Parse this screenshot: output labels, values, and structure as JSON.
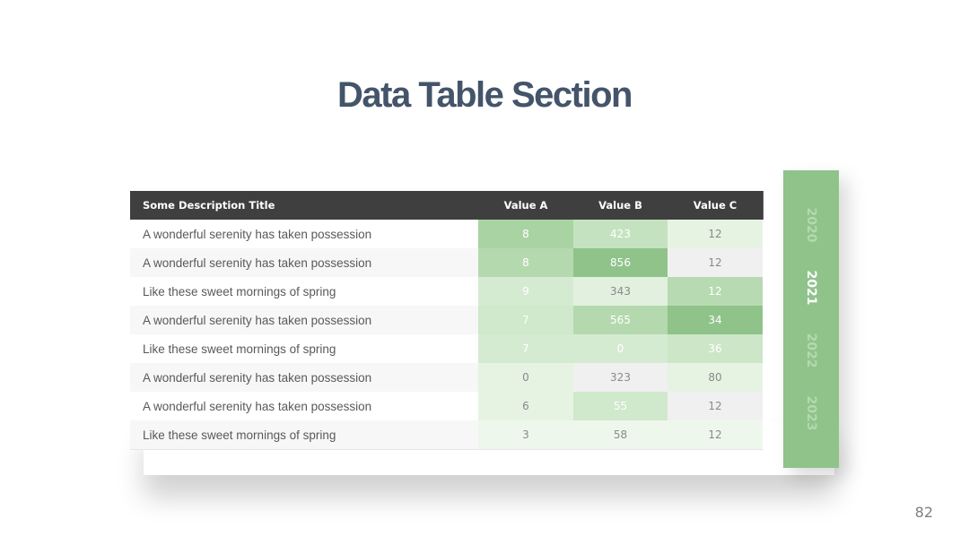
{
  "header": {
    "title": "Data Table Section"
  },
  "table": {
    "columns": [
      "Some Description Title",
      "Value A",
      "Value B",
      "Value C"
    ],
    "rows": [
      {
        "description": "A wonderful serenity has taken possession",
        "values": [
          8,
          423,
          12
        ],
        "fills": [
          "#a9d3a3",
          "#c5e2c0",
          "#e6f3e3"
        ],
        "text_colors": [
          "#ffffff",
          "#ffffff",
          "#8a8a8a"
        ]
      },
      {
        "description": "A wonderful serenity has taken possession",
        "values": [
          8,
          856,
          12
        ],
        "fills": [
          "#b5d9ae",
          "#8fc38a",
          "#f0f0f0"
        ],
        "text_colors": [
          "#ffffff",
          "#ffffff",
          "#8a8a8a"
        ]
      },
      {
        "description": "Like these sweet mornings of spring",
        "values": [
          9,
          343,
          12
        ],
        "fills": [
          "#d5ebd1",
          "#e2f0df",
          "#b8dab2"
        ],
        "text_colors": [
          "#ffffff",
          "#8a8a8a",
          "#ffffff"
        ]
      },
      {
        "description": "A wonderful serenity has taken possession",
        "values": [
          7,
          565,
          34
        ],
        "fills": [
          "#d0e8cb",
          "#b5d9ae",
          "#8fc38a"
        ],
        "text_colors": [
          "#ffffff",
          "#ffffff",
          "#ffffff"
        ]
      },
      {
        "description": "Like these sweet mornings of spring",
        "values": [
          7,
          0,
          36
        ],
        "fills": [
          "#d5ebd1",
          "#d5ebd1",
          "#cce6c7"
        ],
        "text_colors": [
          "#ffffff",
          "#ffffff",
          "#ffffff"
        ]
      },
      {
        "description": "A wonderful serenity has taken possession",
        "values": [
          0,
          323,
          80
        ],
        "fills": [
          "#e6f3e3",
          "#f0f0f0",
          "#e6f3e3"
        ],
        "text_colors": [
          "#8a8a8a",
          "#8a8a8a",
          "#8a8a8a"
        ]
      },
      {
        "description": "A wonderful serenity has taken possession",
        "values": [
          6,
          55,
          12
        ],
        "fills": [
          "#e6f3e3",
          "#d0e8cb",
          "#f0f0f0"
        ],
        "text_colors": [
          "#8a8a8a",
          "#ffffff",
          "#8a8a8a"
        ]
      },
      {
        "description": "Like these sweet mornings of spring",
        "values": [
          3,
          58,
          12
        ],
        "fills": [
          "#eef7ec",
          "#eef7ec",
          "#eef7ec"
        ],
        "text_colors": [
          "#8a8a8a",
          "#8a8a8a",
          "#8a8a8a"
        ]
      }
    ]
  },
  "year_tabs": {
    "years": [
      "2020",
      "2021",
      "2022",
      "2023"
    ],
    "active_index": 1
  },
  "footer": {
    "page_number": "82"
  }
}
